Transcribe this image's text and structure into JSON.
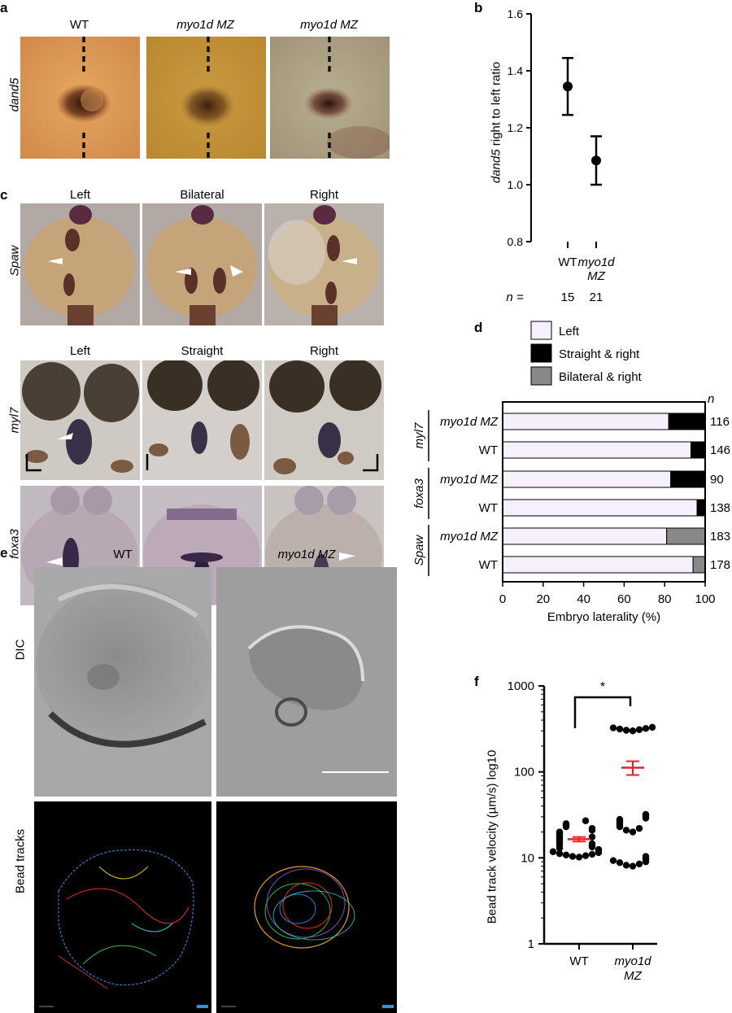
{
  "panel_letters": {
    "a": "a",
    "b": "b",
    "c": "c",
    "d": "d",
    "e": "e",
    "f": "f"
  },
  "panel_a": {
    "row_label": "dand5",
    "columns": [
      "WT",
      "myo1d MZ",
      "myo1d MZ"
    ]
  },
  "panel_c": {
    "spaw_columns": [
      "Left",
      "Bilateral",
      "Right"
    ],
    "heart_columns": [
      "Left",
      "Straight",
      "Right"
    ],
    "row_labels": {
      "spaw": "Spaw",
      "myl7": "myl7",
      "foxa3": "foxa3"
    }
  },
  "panel_e": {
    "columns": [
      "WT",
      "myo1d MZ"
    ],
    "row_labels": {
      "dic": "DIC",
      "tracks": "Bead tracks"
    }
  },
  "chart_b": {
    "type": "scatter",
    "ylabel_gene": "dand5",
    "ylabel_rest": " right to left ratio",
    "ylim": [
      0.8,
      1.6
    ],
    "yticks": [
      "0.8",
      "1.0",
      "1.2",
      "1.4",
      "1.6"
    ],
    "categories": [
      "WT",
      "myo1d MZ"
    ],
    "cat_line1": [
      "WT",
      "myo1d"
    ],
    "cat_line2": [
      "",
      "MZ"
    ],
    "n_label": "n =",
    "n_values": [
      "15",
      "21"
    ],
    "points": [
      {
        "x": "WT",
        "y": 1.345,
        "err_low": 1.245,
        "err_high": 1.445
      },
      {
        "x": "myo1d MZ",
        "y": 1.085,
        "err_low": 1.0,
        "err_high": 1.17
      }
    ]
  },
  "chart_d": {
    "type": "bar",
    "orientation": "horizontal",
    "stacked": true,
    "xlabel": "Embryo laterality (%)",
    "xlim": [
      0,
      100
    ],
    "xticks": [
      "0",
      "20",
      "40",
      "60",
      "80",
      "100"
    ],
    "n_header": "n",
    "legend": [
      {
        "name": "Left",
        "color": "#f5f0fb"
      },
      {
        "name": "Straight & right",
        "color": "#000000"
      },
      {
        "name": "Bilateral & right",
        "color": "#888888"
      }
    ],
    "groups": [
      "myl7",
      "foxa3",
      "Spaw"
    ],
    "rows": [
      {
        "group": "myl7",
        "label": "myo1d MZ",
        "left": 82,
        "other": 18,
        "other_type": "Straight & right",
        "n": "116"
      },
      {
        "group": "myl7",
        "label": "WT",
        "left": 93,
        "other": 7,
        "other_type": "Straight & right",
        "n": "146"
      },
      {
        "group": "foxa3",
        "label": "myo1d MZ",
        "left": 83,
        "other": 17,
        "other_type": "Straight & right",
        "n": "90"
      },
      {
        "group": "foxa3",
        "label": "WT",
        "left": 96,
        "other": 4,
        "other_type": "Straight & right",
        "n": "138"
      },
      {
        "group": "Spaw",
        "label": "myo1d MZ",
        "left": 81,
        "other": 19,
        "other_type": "Bilateral & right",
        "n": "183"
      },
      {
        "group": "Spaw",
        "label": "WT",
        "left": 94,
        "other": 6,
        "other_type": "Bilateral & right",
        "n": "178"
      }
    ]
  },
  "chart_f": {
    "type": "scatter",
    "ylabel": "Bead track velocity (µm/s) log10",
    "yscale": "log",
    "ylim": [
      1,
      1000
    ],
    "yticks": [
      "1",
      "10",
      "100",
      "1000"
    ],
    "categories": [
      "WT",
      "myo1d MZ"
    ],
    "cat_line1": [
      "WT",
      "myo1d"
    ],
    "cat_line2": [
      "",
      "MZ"
    ],
    "significance": "*",
    "mean_color": "#e8202a",
    "groups": [
      {
        "name": "WT",
        "mean": 16.5,
        "sem_low": 15.5,
        "sem_high": 17.5,
        "values": [
          10.2,
          10.4,
          10.6,
          10.8,
          11,
          11.2,
          11.5,
          11.8,
          12.2,
          12.5,
          13,
          13.4,
          13.8,
          14.2,
          14.6,
          15,
          15.5,
          16,
          16.5,
          17,
          17.5,
          18,
          18.5,
          19,
          19.5,
          20,
          21,
          22,
          23,
          24,
          25,
          27
        ]
      },
      {
        "name": "myo1d MZ",
        "mean": 112,
        "sem_low": 92,
        "sem_high": 133,
        "values": [
          8,
          8.2,
          8.5,
          8.8,
          9,
          9.3,
          9.6,
          10,
          10.4,
          20,
          21,
          22,
          23,
          24,
          25,
          26,
          27,
          28,
          29,
          30,
          31,
          32,
          300,
          305,
          310,
          315,
          320,
          325,
          330
        ]
      }
    ]
  }
}
